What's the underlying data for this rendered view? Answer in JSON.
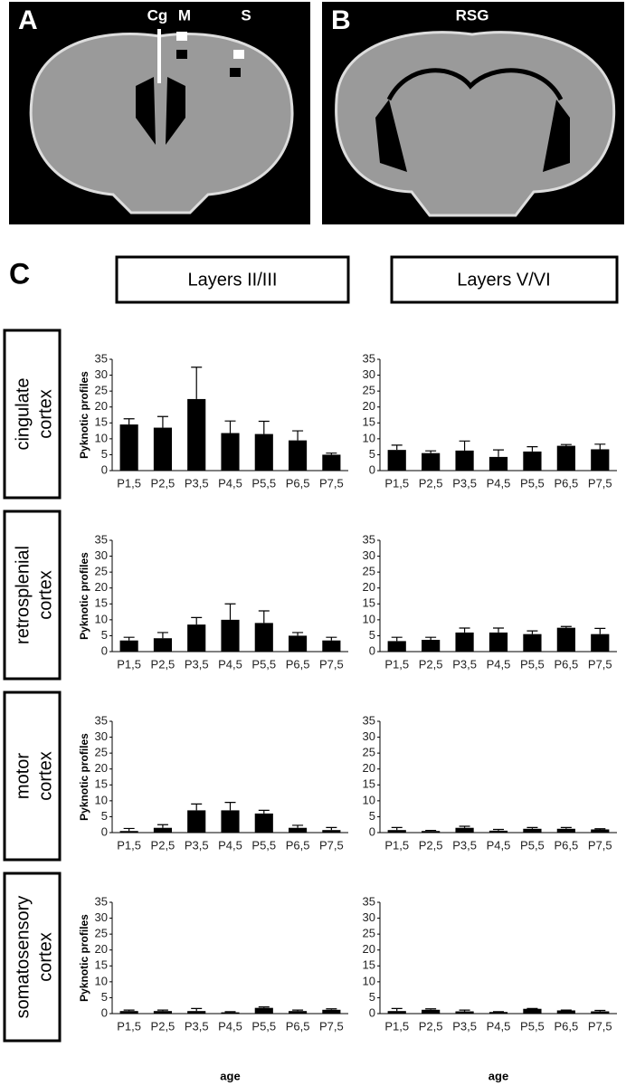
{
  "figure": {
    "panels": [
      "A",
      "B",
      "C"
    ],
    "image_a_labels": [
      "Cg",
      "M",
      "S"
    ],
    "image_b_labels": [
      "RSG"
    ],
    "column_headers": [
      "Layers II/III",
      "Layers V/VI"
    ],
    "row_headers": [
      [
        "cingulate",
        "cortex"
      ],
      [
        "retrosplenial",
        "cortex"
      ],
      [
        "motor",
        "cortex"
      ],
      [
        "somatosensory",
        "cortex"
      ]
    ]
  },
  "chart_data": [
    {
      "type": "bar",
      "ylabel": "Pyknotic profiles",
      "categories": [
        "P1,5",
        "P2,5",
        "P3,5",
        "P4,5",
        "P5,5",
        "P6,5",
        "P7,5"
      ],
      "values": [
        14.5,
        13.5,
        22.5,
        11.8,
        11.5,
        9.5,
        5
      ],
      "errors": [
        1.8,
        3.5,
        10,
        3.8,
        4,
        3,
        0.5
      ],
      "color": "#000000",
      "ylim": [
        0,
        35
      ],
      "yticks": [
        0,
        5,
        10,
        15,
        20,
        25,
        30,
        35
      ]
    },
    {
      "type": "bar",
      "categories": [
        "P1,5",
        "P2,5",
        "P3,5",
        "P4,5",
        "P5,5",
        "P6,5",
        "P7,5"
      ],
      "values": [
        6.5,
        5.5,
        6.3,
        4.3,
        6,
        7.8,
        6.7
      ],
      "errors": [
        1.5,
        0.7,
        3,
        2.2,
        1.5,
        0.4,
        1.6
      ],
      "color": "#000000",
      "ylim": [
        0,
        35
      ],
      "yticks": [
        0,
        5,
        10,
        15,
        20,
        25,
        30,
        35
      ]
    },
    {
      "type": "bar",
      "ylabel": "Pyknotic profiles",
      "categories": [
        "P1,5",
        "P2,5",
        "P3,5",
        "P4,5",
        "P5,5",
        "P6,5",
        "P7,5"
      ],
      "values": [
        3.5,
        4.2,
        8.5,
        10,
        9,
        5,
        3.5
      ],
      "errors": [
        1,
        1.8,
        2.2,
        5,
        3.8,
        1,
        1
      ],
      "color": "#000000",
      "ylim": [
        0,
        35
      ],
      "yticks": [
        0,
        5,
        10,
        15,
        20,
        25,
        30,
        35
      ]
    },
    {
      "type": "bar",
      "categories": [
        "P1,5",
        "P2,5",
        "P3,5",
        "P4,5",
        "P5,5",
        "P6,5",
        "P7,5"
      ],
      "values": [
        3.3,
        3.7,
        6,
        6,
        5.5,
        7.5,
        5.5
      ],
      "errors": [
        1.2,
        0.8,
        1.4,
        1.4,
        1,
        0.4,
        1.8
      ],
      "color": "#000000",
      "ylim": [
        0,
        35
      ],
      "yticks": [
        0,
        5,
        10,
        15,
        20,
        25,
        30,
        35
      ]
    },
    {
      "type": "bar",
      "ylabel": "Pyknotic profiles",
      "categories": [
        "P1,5",
        "P2,5",
        "P3,5",
        "P4,5",
        "P5,5",
        "P6,5",
        "P7,5"
      ],
      "values": [
        0.5,
        1.5,
        7,
        7,
        6,
        1.5,
        0.8
      ],
      "errors": [
        0.8,
        1,
        2,
        2.5,
        1,
        0.8,
        0.8
      ],
      "color": "#000000",
      "ylim": [
        0,
        35
      ],
      "yticks": [
        0,
        5,
        10,
        15,
        20,
        25,
        30,
        35
      ]
    },
    {
      "type": "bar",
      "categories": [
        "P1,5",
        "P2,5",
        "P3,5",
        "P4,5",
        "P5,5",
        "P6,5",
        "P7,5"
      ],
      "values": [
        0.8,
        0.5,
        1.5,
        0.6,
        1.2,
        1.2,
        1
      ],
      "errors": [
        0.8,
        0.2,
        0.5,
        0.4,
        0.4,
        0.4,
        0.2
      ],
      "color": "#000000",
      "ylim": [
        0,
        35
      ],
      "yticks": [
        0,
        5,
        10,
        15,
        20,
        25,
        30,
        35
      ]
    },
    {
      "type": "bar",
      "ylabel": "Pyknotic profiles",
      "xlabel": "age",
      "categories": [
        "P1,5",
        "P2,5",
        "P3,5",
        "P4,5",
        "P5,5",
        "P6,5",
        "P7,5"
      ],
      "values": [
        0.8,
        0.8,
        0.8,
        0.4,
        1.8,
        0.8,
        1.2
      ],
      "errors": [
        0.3,
        0.3,
        0.8,
        0.2,
        0.3,
        0.3,
        0.3
      ],
      "color": "#000000",
      "ylim": [
        0,
        35
      ],
      "yticks": [
        0,
        5,
        10,
        15,
        20,
        25,
        30,
        35
      ]
    },
    {
      "type": "bar",
      "xlabel": "age",
      "categories": [
        "P1,5",
        "P2,5",
        "P3,5",
        "P4,5",
        "P5,5",
        "P6,5",
        "P7,5"
      ],
      "values": [
        0.8,
        1.2,
        0.7,
        0.5,
        1.5,
        1,
        0.7
      ],
      "errors": [
        0.8,
        0.3,
        0.4,
        0.1,
        0.1,
        0.1,
        0.3
      ],
      "color": "#000000",
      "ylim": [
        0,
        35
      ],
      "yticks": [
        0,
        5,
        10,
        15,
        20,
        25,
        30,
        35
      ]
    }
  ]
}
